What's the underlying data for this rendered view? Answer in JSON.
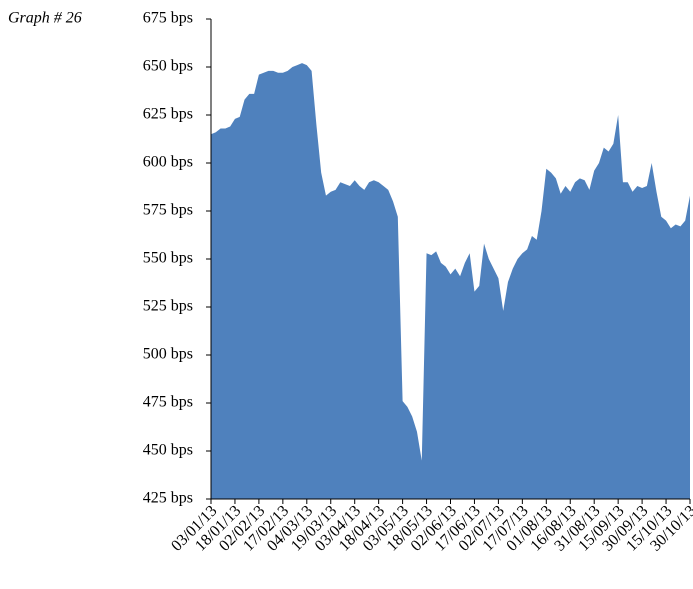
{
  "chart_data": {
    "type": "area",
    "title": "Graph # 26",
    "categories": [
      "03/01/13",
      null,
      null,
      null,
      null,
      "18/01/13",
      null,
      null,
      null,
      null,
      "02/02/13",
      null,
      null,
      null,
      null,
      "17/02/13",
      null,
      null,
      null,
      null,
      "04/03/13",
      null,
      null,
      null,
      null,
      "19/03/13",
      null,
      null,
      null,
      null,
      "03/04/13",
      null,
      null,
      null,
      null,
      "18/04/13",
      null,
      null,
      null,
      null,
      "03/05/13",
      null,
      null,
      null,
      null,
      "18/05/13",
      null,
      null,
      null,
      null,
      "02/06/13",
      null,
      null,
      null,
      null,
      "17/06/13",
      null,
      null,
      null,
      null,
      "02/07/13",
      null,
      null,
      null,
      null,
      "17/07/13",
      null,
      null,
      null,
      null,
      "01/08/13",
      null,
      null,
      null,
      null,
      "16/08/13",
      null,
      null,
      null,
      null,
      "31/08/13",
      null,
      null,
      null,
      null,
      "15/09/13",
      null,
      null,
      null,
      null,
      "30/09/13",
      null,
      null,
      null,
      null,
      "15/10/13",
      null,
      null,
      null,
      null,
      "30/10/13"
    ],
    "values": [
      615,
      616,
      618,
      618,
      619,
      623,
      624,
      633,
      636,
      636,
      646,
      647,
      648,
      648,
      647,
      647,
      648,
      650,
      651,
      652,
      651,
      648,
      620,
      595,
      583,
      585,
      586,
      590,
      589,
      588,
      591,
      588,
      586,
      590,
      591,
      590,
      588,
      586,
      580,
      572,
      476,
      473,
      468,
      460,
      445,
      553,
      552,
      554,
      548,
      546,
      542,
      545,
      541,
      548,
      553,
      533,
      536,
      558,
      550,
      545,
      540,
      523,
      538,
      545,
      550,
      553,
      555,
      562,
      560,
      575,
      597,
      595,
      592,
      584,
      588,
      585,
      590,
      592,
      591,
      586,
      596,
      600,
      608,
      606,
      610,
      625,
      590,
      590,
      585,
      588,
      587,
      588,
      600,
      585,
      572,
      570,
      566,
      568,
      567,
      570,
      583
    ],
    "color": "#4f81bd",
    "ylim": [
      425,
      675
    ],
    "yticks": [
      {
        "value": 425,
        "label": "425 bps"
      },
      {
        "value": 450,
        "label": "450 bps"
      },
      {
        "value": 475,
        "label": "475 bps"
      },
      {
        "value": 500,
        "label": "500 bps"
      },
      {
        "value": 525,
        "label": "525 bps"
      },
      {
        "value": 550,
        "label": "550 bps"
      },
      {
        "value": 575,
        "label": "575 bps"
      },
      {
        "value": 600,
        "label": "600 bps"
      },
      {
        "value": 625,
        "label": "625 bps"
      },
      {
        "value": 650,
        "label": "650 bps"
      },
      {
        "value": 675,
        "label": "675 bps"
      }
    ],
    "grid": false
  }
}
